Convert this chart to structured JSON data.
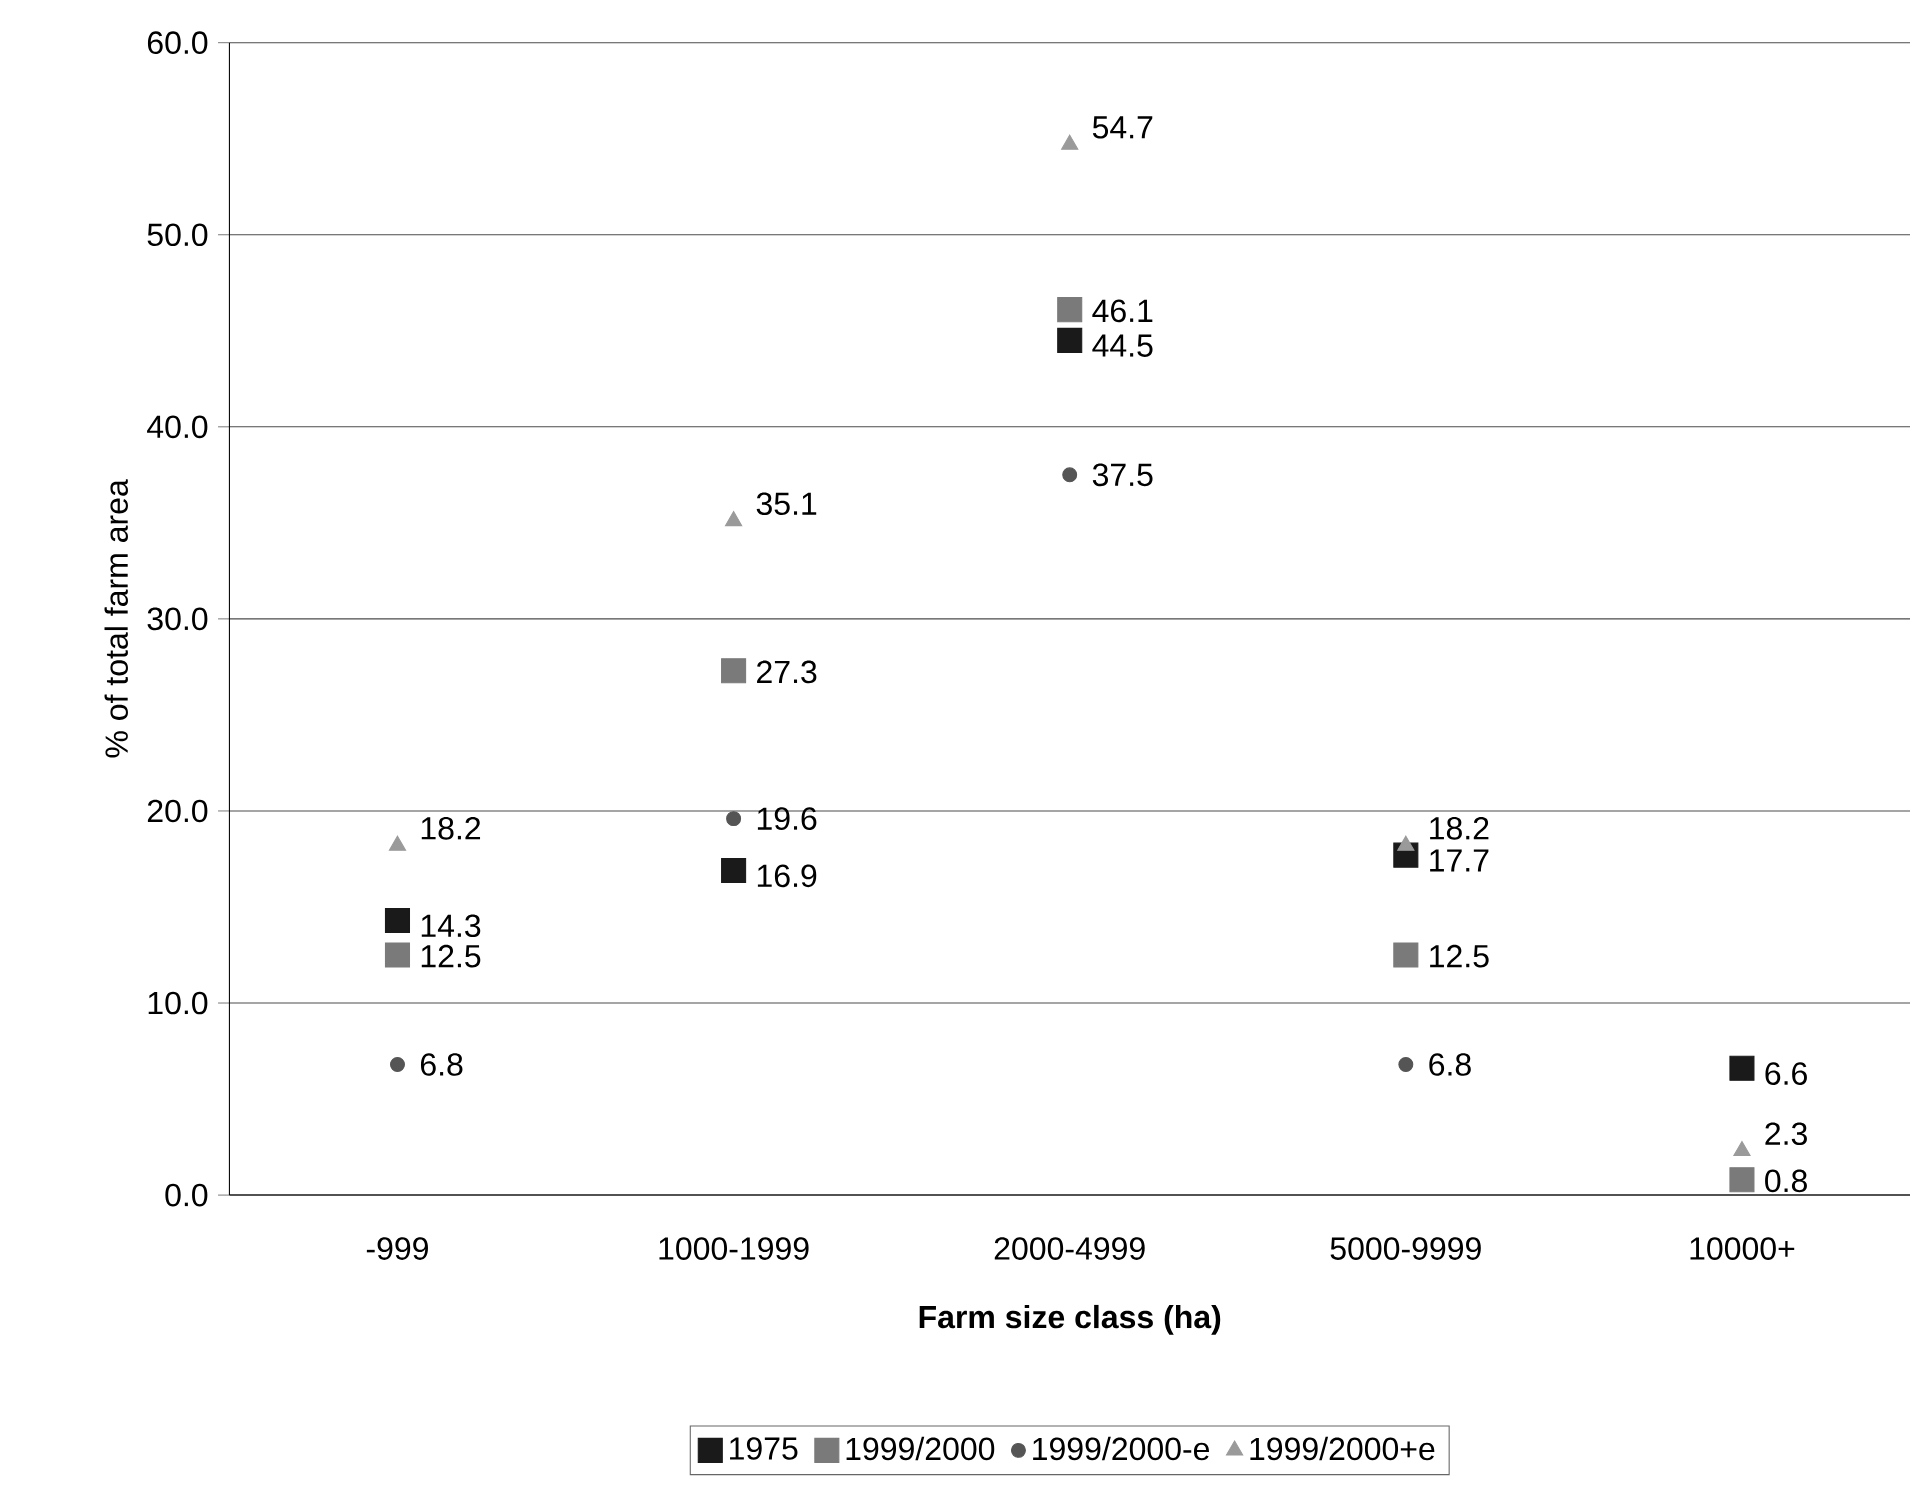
{
  "chart_data": {
    "type": "scatter",
    "xlabel": "Farm size class (ha)",
    "ylabel": "% of total farm area",
    "categories": [
      "-999",
      "1000-1999",
      "2000-4999",
      "5000-9999",
      "10000+"
    ],
    "ylim": [
      0,
      60
    ],
    "yticks": [
      {
        "value": 0,
        "label": "0.0"
      },
      {
        "value": 10,
        "label": "10.0"
      },
      {
        "value": 20,
        "label": "20.0"
      },
      {
        "value": 30,
        "label": "30.0"
      },
      {
        "value": 40,
        "label": "40.0"
      },
      {
        "value": 50,
        "label": "50.0"
      },
      {
        "value": 60,
        "label": "60.0"
      }
    ],
    "grid": "y",
    "legend": "bottom",
    "data_labels": true,
    "series": [
      {
        "name": "1975",
        "color": "#1a1a1a",
        "marker": "square",
        "values": [
          14.3,
          16.9,
          44.5,
          17.7,
          6.6
        ]
      },
      {
        "name": "1999/2000",
        "color": "#7a7a7a",
        "marker": "square",
        "values": [
          12.5,
          27.3,
          46.1,
          12.5,
          0.8
        ]
      },
      {
        "name": "1999/2000-e",
        "color": "#555555",
        "marker": "circle",
        "values": [
          6.8,
          19.6,
          37.5,
          6.8,
          null
        ]
      },
      {
        "name": "1999/2000+e",
        "color": "#9a9a9a",
        "marker": "triangle",
        "values": [
          18.2,
          35.1,
          54.7,
          18.2,
          2.3
        ]
      }
    ]
  }
}
